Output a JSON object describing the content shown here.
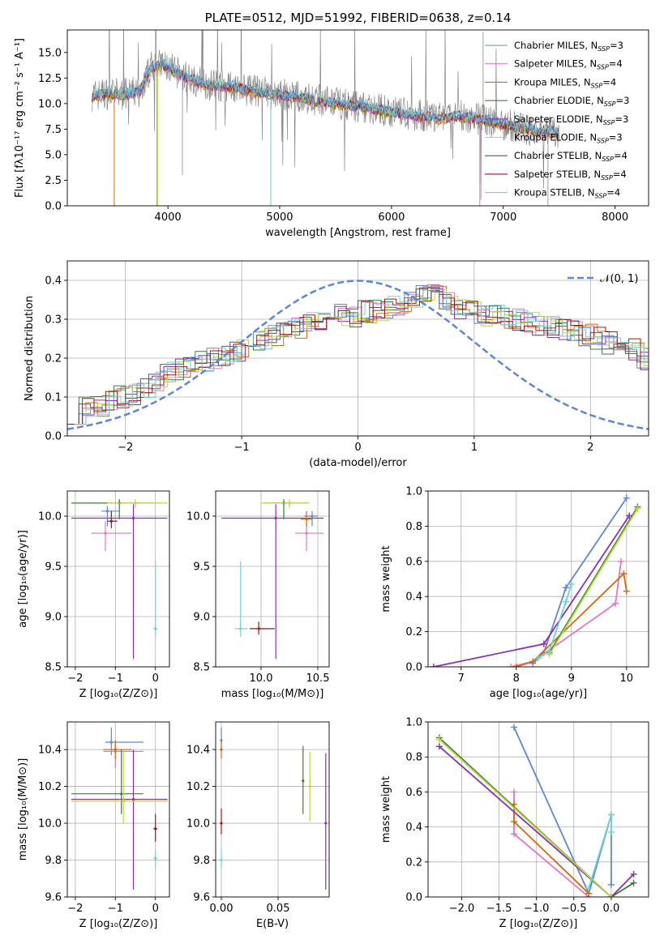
{
  "colors": [
    "#5b87d6",
    "#e377c2",
    "#d46b0a",
    "#3a7d3a",
    "#8b2fb5",
    "#bcd93a",
    "#555555",
    "#a01515",
    "#6fd0d8"
  ],
  "chart_data": [
    {
      "type": "line",
      "title": "PLATE=0512, MJD=51992, FIBERID=0638, z=0.14",
      "xlabel": "wavelength [Angstrom, rest frame]",
      "ylabel": "Flux [fλ10⁻¹⁷ erg cm⁻² s⁻¹ A⁻¹]",
      "xlim": [
        3100,
        8300
      ],
      "ylim": [
        0,
        17.2
      ],
      "xticks": [
        4000,
        5000,
        6000,
        7000,
        8000
      ],
      "yticks": [
        0.0,
        2.5,
        5.0,
        7.5,
        10.0,
        12.5,
        15.0
      ],
      "legend_position": "upper-right",
      "legend": [
        "Chabrier MILES, Nₛₛₚ=3",
        "Salpeter MILES, Nₛₛₚ=4",
        "Kroupa MILES, Nₛₛₚ=4",
        "Chabrier ELODIE, Nₛₛₚ=3",
        "Salpeter ELODIE, Nₛₛₚ=3",
        "Kroupa ELODIE, Nₛₛₚ=3",
        "Chabrier STELIB, Nₛₛₚ=4",
        "Salpeter STELIB, Nₛₛₚ=4",
        "Kroupa STELIB, Nₛₛₚ=4"
      ],
      "legend_labels": [
        {
          "name": "Chabrier MILES, N",
          "sub": "SSP",
          "val": "=3"
        },
        {
          "name": "Salpeter MILES, N",
          "sub": "SSP",
          "val": "=4"
        },
        {
          "name": "Kroupa MILES, N",
          "sub": "SSP",
          "val": "=4"
        },
        {
          "name": "Chabrier ELODIE, N",
          "sub": "SSP",
          "val": "=3"
        },
        {
          "name": "Salpeter ELODIE, N",
          "sub": "SSP",
          "val": "=3"
        },
        {
          "name": "Kroupa ELODIE, N",
          "sub": "SSP",
          "val": "=3"
        },
        {
          "name": "Chabrier STELIB, N",
          "sub": "SSP",
          "val": "=4"
        },
        {
          "name": "Salpeter STELIB, N",
          "sub": "SSP",
          "val": "=4"
        },
        {
          "name": "Kroupa STELIB, N",
          "sub": "SSP",
          "val": "=4"
        }
      ],
      "continuum_points": [
        [
          3320,
          10.8
        ],
        [
          3450,
          11.0
        ],
        [
          3600,
          10.9
        ],
        [
          3750,
          11.2
        ],
        [
          3850,
          13.6
        ],
        [
          3950,
          13.8
        ],
        [
          4050,
          13.2
        ],
        [
          4200,
          12.4
        ],
        [
          4400,
          11.8
        ],
        [
          4600,
          11.6
        ],
        [
          4800,
          11.2
        ],
        [
          5000,
          10.9
        ],
        [
          5200,
          10.6
        ],
        [
          5400,
          10.2
        ],
        [
          5600,
          9.9
        ],
        [
          5800,
          9.6
        ],
        [
          6000,
          9.2
        ],
        [
          6200,
          8.9
        ],
        [
          6400,
          8.6
        ],
        [
          6600,
          8.8
        ],
        [
          6800,
          8.5
        ],
        [
          7000,
          8.0
        ],
        [
          7200,
          7.5
        ],
        [
          7400,
          7.3
        ],
        [
          7500,
          7.2
        ]
      ]
    },
    {
      "type": "histogram",
      "xlabel": "(data-model)/error",
      "ylabel": "Normed distribution",
      "xlim": [
        -2.5,
        2.5
      ],
      "ylim": [
        0,
        0.45
      ],
      "xticks": [
        -2,
        -1,
        0,
        1,
        2
      ],
      "yticks": [
        0.0,
        0.1,
        0.2,
        0.3,
        0.4
      ],
      "reference_curve": "𝒩(0, 1)",
      "bin_width": 0.1,
      "base_distribution": [
        0.06,
        0.07,
        0.08,
        0.09,
        0.1,
        0.11,
        0.12,
        0.14,
        0.16,
        0.17,
        0.18,
        0.19,
        0.2,
        0.21,
        0.22,
        0.23,
        0.25,
        0.26,
        0.27,
        0.28,
        0.29,
        0.3,
        0.3,
        0.31,
        0.31,
        0.32,
        0.32,
        0.33,
        0.34,
        0.35,
        0.36,
        0.36,
        0.34,
        0.33,
        0.32,
        0.31,
        0.31,
        0.3,
        0.3,
        0.29,
        0.28,
        0.28,
        0.27,
        0.27,
        0.26,
        0.25,
        0.24,
        0.23,
        0.22,
        0.2
      ]
    },
    {
      "type": "scatter",
      "xlabel": "Z [log₁₀(Z/Z⊙)]",
      "ylabel": "age  [log₁₀(age/yr)]",
      "xlim": [
        -2.2,
        0.35
      ],
      "ylim": [
        8.5,
        10.25
      ],
      "xticks": [
        -2,
        -1,
        0
      ],
      "yticks": [
        8.5,
        9.0,
        9.5,
        10.0
      ],
      "points": [
        {
          "c": 1,
          "x": -1.25,
          "y": 9.83,
          "xe": [
            -1.6,
            -0.6
          ],
          "ye": [
            9.65,
            9.95
          ]
        },
        {
          "c": 4,
          "x": -0.55,
          "y": 9.98,
          "xe": [
            -2.1,
            0.3
          ],
          "ye": [
            8.58,
            10.12
          ]
        },
        {
          "c": 3,
          "x": -0.9,
          "y": 10.13,
          "xe": [
            -2.1,
            0.0
          ],
          "ye": [
            9.97,
            10.17
          ]
        },
        {
          "c": 5,
          "x": -0.5,
          "y": 10.13,
          "xe": [
            -1.2,
            0.3
          ],
          "ye": [
            10.08,
            10.17
          ]
        },
        {
          "c": 0,
          "x": -1.2,
          "y": 10.05,
          "xe": [
            -1.35,
            -0.9
          ],
          "ye": [
            9.9,
            10.1
          ]
        },
        {
          "c": 8,
          "x": 0.0,
          "y": 8.88,
          "xe": [
            -0.05,
            0.05
          ],
          "ye": [
            8.8,
            9.55
          ]
        },
        {
          "c": 7,
          "x": -1.1,
          "y": 9.95,
          "xe": [
            -1.2,
            -0.95
          ],
          "ye": [
            9.88,
            10.05
          ]
        }
      ]
    },
    {
      "type": "scatter",
      "xlabel": "mass [log₁₀(M/M⊙)]",
      "ylabel": "",
      "xlim": [
        9.6,
        10.6
      ],
      "ylim": [
        8.5,
        10.25
      ],
      "xticks": [
        10.0,
        10.5
      ],
      "yticks": [
        8.5,
        9.0,
        9.5,
        10.0
      ],
      "points": [
        {
          "c": 1,
          "x": 10.4,
          "y": 9.83,
          "xe": [
            10.3,
            10.55
          ],
          "ye": [
            9.65,
            9.95
          ]
        },
        {
          "c": 4,
          "x": 10.13,
          "y": 9.98,
          "xe": [
            9.65,
            10.55
          ],
          "ye": [
            8.58,
            10.12
          ]
        },
        {
          "c": 3,
          "x": 10.2,
          "y": 10.13,
          "xe": [
            10.02,
            10.42
          ],
          "ye": [
            9.97,
            10.17
          ]
        },
        {
          "c": 5,
          "x": 10.25,
          "y": 10.13,
          "xe": [
            10.0,
            10.42
          ],
          "ye": [
            10.08,
            10.17
          ]
        },
        {
          "c": 0,
          "x": 10.45,
          "y": 10.0,
          "xe": [
            10.38,
            10.5
          ],
          "ye": [
            9.9,
            10.05
          ]
        },
        {
          "c": 8,
          "x": 9.82,
          "y": 8.88,
          "xe": [
            9.77,
            9.88
          ],
          "ye": [
            8.8,
            9.55
          ]
        },
        {
          "c": 7,
          "x": 9.98,
          "y": 8.88,
          "xe": [
            9.9,
            10.12
          ],
          "ye": [
            8.82,
            8.95
          ]
        },
        {
          "c": 2,
          "x": 10.4,
          "y": 9.97,
          "xe": [
            10.35,
            10.45
          ],
          "ye": [
            9.9,
            10.05
          ]
        }
      ]
    },
    {
      "type": "line",
      "xlabel": "age  [log₁₀(age/yr)]",
      "ylabel": "mass weight",
      "xlim": [
        6.4,
        10.4
      ],
      "ylim": [
        0,
        1.0
      ],
      "xticks": [
        7,
        8,
        9,
        10
      ],
      "yticks": [
        0.0,
        0.2,
        0.4,
        0.6,
        0.8,
        1.0
      ],
      "series": [
        {
          "c": 0,
          "x": [
            8.3,
            8.5,
            8.9,
            10.0
          ],
          "y": [
            0.02,
            0.08,
            0.45,
            0.96
          ]
        },
        {
          "c": 4,
          "x": 6.5,
          "xs": [
            6.5,
            8.5,
            10.05
          ],
          "y": [
            0.0,
            0.13,
            0.86
          ]
        },
        {
          "c": 1,
          "x": [
            7.9,
            8.3,
            9.8,
            9.9
          ],
          "y": [
            0.0,
            0.03,
            0.36,
            0.6
          ]
        },
        {
          "c": 2,
          "x": [
            8.0,
            8.3,
            9.95,
            10.0
          ],
          "y": [
            0.0,
            0.03,
            0.53,
            0.43
          ]
        },
        {
          "c": 3,
          "x": [
            8.6,
            10.2
          ],
          "y": [
            0.08,
            0.91
          ]
        },
        {
          "c": 5,
          "x": [
            8.6,
            10.2
          ],
          "y": [
            0.07,
            0.9
          ]
        },
        {
          "c": 8,
          "x": [
            8.4,
            8.6,
            8.9,
            9.0
          ],
          "y": [
            0.05,
            0.09,
            0.37,
            0.47
          ]
        }
      ]
    },
    {
      "type": "scatter",
      "xlabel": "Z [log₁₀(Z/Z⊙)]",
      "ylabel": "mass [log₁₀(M/M⊙)]",
      "xlim": [
        -2.2,
        0.35
      ],
      "ylim": [
        9.6,
        10.55
      ],
      "xticks": [
        -2,
        -1,
        0
      ],
      "yticks": [
        9.6,
        9.8,
        10.0,
        10.2,
        10.4
      ],
      "points": [
        {
          "c": 0,
          "x": -1.1,
          "y": 10.44,
          "xe": [
            -1.25,
            -0.3
          ],
          "ye": [
            10.37,
            10.52
          ]
        },
        {
          "c": 1,
          "x": -1.0,
          "y": 10.39,
          "xe": [
            -1.3,
            -0.3
          ],
          "ye": [
            10.3,
            10.45
          ]
        },
        {
          "c": 2,
          "x": -1.0,
          "y": 10.4,
          "xe": [
            -1.3,
            -0.6
          ],
          "ye": [
            10.35,
            10.45
          ]
        },
        {
          "c": 4,
          "x": -0.55,
          "y": 10.13,
          "xe": [
            -2.1,
            0.3
          ],
          "ye": [
            9.64,
            10.4
          ]
        },
        {
          "c": 3,
          "x": -0.85,
          "y": 10.16,
          "xe": [
            -2.1,
            -0.3
          ],
          "ye": [
            10.05,
            10.4
          ]
        },
        {
          "c": 5,
          "x": -0.8,
          "y": 10.12,
          "xe": [
            -2.1,
            0.3
          ],
          "ye": [
            10.0,
            10.4
          ]
        },
        {
          "c": 7,
          "x": 0.0,
          "y": 9.97,
          "xe": [
            -0.05,
            0.05
          ],
          "ye": [
            9.9,
            10.05
          ]
        },
        {
          "c": 8,
          "x": 0.0,
          "y": 9.81,
          "xe": [
            -0.05,
            0.05
          ],
          "ye": [
            9.76,
            9.86
          ]
        }
      ]
    },
    {
      "type": "scatter",
      "xlabel": "E(B-V)",
      "ylabel": "",
      "xlim": [
        -0.005,
        0.095
      ],
      "ylim": [
        9.6,
        10.55
      ],
      "xticks": [
        0.0,
        0.05
      ],
      "yticks": [
        9.6,
        9.8,
        10.0,
        10.2,
        10.4
      ],
      "points": [
        {
          "c": 0,
          "x": 0.0,
          "y": 10.45,
          "ye": [
            10.4,
            10.52
          ]
        },
        {
          "c": 2,
          "x": 0.0,
          "y": 10.4,
          "ye": [
            10.35,
            10.45
          ]
        },
        {
          "c": 7,
          "x": 0.0,
          "y": 10.0,
          "ye": [
            9.94,
            10.08
          ]
        },
        {
          "c": 8,
          "x": 0.0,
          "y": 9.8,
          "ye": [
            9.76,
            9.86
          ]
        },
        {
          "c": 3,
          "x": 0.072,
          "y": 10.23,
          "ye": [
            10.05,
            10.42
          ]
        },
        {
          "c": 5,
          "x": 0.078,
          "y": 10.2,
          "ye": [
            10.01,
            10.39
          ]
        },
        {
          "c": 4,
          "x": 0.092,
          "y": 10.0,
          "ye": [
            9.64,
            10.38
          ]
        }
      ]
    },
    {
      "type": "line",
      "xlabel": "Z [log₁₀(Z/Z⊙)]",
      "ylabel": "mass weight",
      "xlim": [
        -2.45,
        0.5
      ],
      "ylim": [
        0,
        1.0
      ],
      "xticks": [
        -2.0,
        -1.5,
        -1.0,
        -0.5,
        0.0
      ],
      "yticks": [
        0.0,
        0.2,
        0.4,
        0.6,
        0.8,
        1.0
      ],
      "series": [
        {
          "c": 0,
          "x": [
            -1.3,
            -0.3,
            0.0,
            0.0
          ],
          "y": [
            0.97,
            0.02,
            0.47,
            0.07
          ]
        },
        {
          "c": 1,
          "x": [
            -1.3,
            -1.3,
            -0.3
          ],
          "y": [
            0.6,
            0.36,
            0.0
          ]
        },
        {
          "c": 2,
          "x": [
            -1.3,
            -1.3,
            -0.3
          ],
          "y": [
            0.53,
            0.43,
            0.02
          ]
        },
        {
          "c": 3,
          "x": [
            -2.3,
            0.0,
            0.3
          ],
          "y": [
            0.91,
            0.0,
            0.08
          ]
        },
        {
          "c": 4,
          "x": [
            -2.3,
            0.0,
            0.3
          ],
          "y": [
            0.86,
            0.0,
            0.13
          ]
        },
        {
          "c": 5,
          "x": [
            -2.3,
            0.0
          ],
          "y": [
            0.9,
            0.0
          ]
        },
        {
          "c": 8,
          "x": [
            -0.3,
            0.0,
            0.0
          ],
          "y": [
            0.05,
            0.47,
            0.37
          ]
        }
      ]
    }
  ]
}
